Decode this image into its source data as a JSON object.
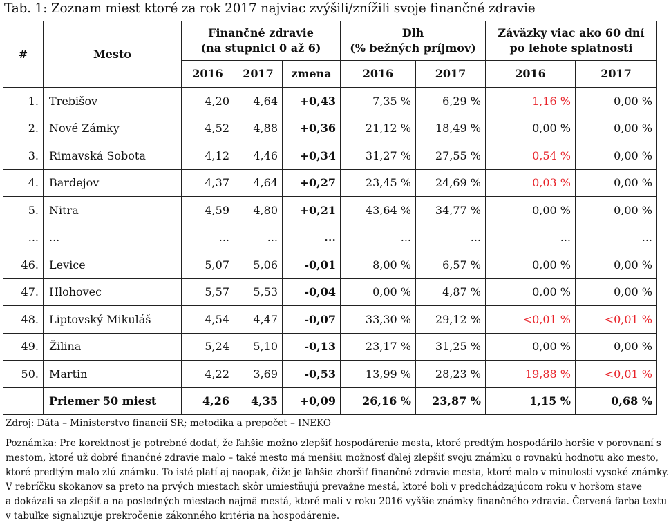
{
  "title": "Tab. 1: Zoznam miest ktoré za rok 2017 najviac zvýšili/znížili svoje finančné zdravie",
  "headers": {
    "num": "#",
    "city": "Mesto",
    "health_line1": "Finančné zdravie",
    "health_line2": "(na stupnici 0 až 6)",
    "debt_line1": "Dlh",
    "debt_line2": "(% bežných príjmov)",
    "liab_line1": "Záväzky viac ako 60 dní",
    "liab_line2": "po lehote splatnosti",
    "y2016": "2016",
    "y2017": "2017",
    "change": "zmena"
  },
  "rows": [
    {
      "rank": "1.",
      "city": "Trebišov",
      "h2016": "4,20",
      "h2017": "4,64",
      "change": "+0,43",
      "d2016": "7,35 %",
      "d2017": "6,29 %",
      "l2016": "1,16 %",
      "l2017": "0,00 %",
      "l2016_red": true,
      "l2017_red": false
    },
    {
      "rank": "2.",
      "city": "Nové Zámky",
      "h2016": "4,52",
      "h2017": "4,88",
      "change": "+0,36",
      "d2016": "21,12 %",
      "d2017": "18,49 %",
      "l2016": "0,00 %",
      "l2017": "0,00 %",
      "l2016_red": false,
      "l2017_red": false
    },
    {
      "rank": "3.",
      "city": "Rimavská Sobota",
      "h2016": "4,12",
      "h2017": "4,46",
      "change": "+0,34",
      "d2016": "31,27 %",
      "d2017": "27,55 %",
      "l2016": "0,54 %",
      "l2017": "0,00 %",
      "l2016_red": true,
      "l2017_red": false
    },
    {
      "rank": "4.",
      "city": "Bardejov",
      "h2016": "4,37",
      "h2017": "4,64",
      "change": "+0,27",
      "d2016": "23,45 %",
      "d2017": "24,69 %",
      "l2016": "0,03 %",
      "l2017": "0,00 %",
      "l2016_red": true,
      "l2017_red": false
    },
    {
      "rank": "5.",
      "city": "Nitra",
      "h2016": "4,59",
      "h2017": "4,80",
      "change": "+0,21",
      "d2016": "43,64 %",
      "d2017": "34,77 %",
      "l2016": "0,00 %",
      "l2017": "0,00 %",
      "l2016_red": false,
      "l2017_red": false
    },
    {
      "rank": "...",
      "city": "...",
      "h2016": "...",
      "h2017": "...",
      "change": "...",
      "d2016": "...",
      "d2017": "...",
      "l2016": "...",
      "l2017": "...",
      "l2016_red": false,
      "l2017_red": false
    },
    {
      "rank": "46.",
      "city": "Levice",
      "h2016": "5,07",
      "h2017": "5,06",
      "change": "-0,01",
      "d2016": "8,00 %",
      "d2017": "6,57 %",
      "l2016": "0,00 %",
      "l2017": "0,00 %",
      "l2016_red": false,
      "l2017_red": false
    },
    {
      "rank": "47.",
      "city": "Hlohovec",
      "h2016": "5,57",
      "h2017": "5,53",
      "change": "-0,04",
      "d2016": "0,00 %",
      "d2017": "4,87 %",
      "l2016": "0,00 %",
      "l2017": "0,00 %",
      "l2016_red": false,
      "l2017_red": false
    },
    {
      "rank": "48.",
      "city": "Liptovský Mikuláš",
      "h2016": "4,54",
      "h2017": "4,47",
      "change": "-0,07",
      "d2016": "33,30 %",
      "d2017": "29,12 %",
      "l2016": "<0,01 %",
      "l2017": "<0,01 %",
      "l2016_red": true,
      "l2017_red": true
    },
    {
      "rank": "49.",
      "city": "Žilina",
      "h2016": "5,24",
      "h2017": "5,10",
      "change": "-0,13",
      "d2016": "23,17 %",
      "d2017": "31,25 %",
      "l2016": "0,00 %",
      "l2017": "0,00 %",
      "l2016_red": false,
      "l2017_red": false
    },
    {
      "rank": "50.",
      "city": "Martin",
      "h2016": "4,22",
      "h2017": "3,69",
      "change": "-0,53",
      "d2016": "13,99 %",
      "d2017": "28,23 %",
      "l2016": "19,88 %",
      "l2017": "<0,01 %",
      "l2016_red": true,
      "l2017_red": true
    }
  ],
  "summary": {
    "label": "Priemer 50 miest",
    "h2016": "4,26",
    "h2017": "4,35",
    "change": "+0,09",
    "d2016": "26,16 %",
    "d2017": "23,87 %",
    "l2016": "1,15 %",
    "l2017": "0,68 %"
  },
  "source": "Zdroj: Dáta – Ministerstvo financií SR; metodika a prepočet – INEKO",
  "note_lines": [
    "Poznámka: Pre korektnosť je potrebné dodať, že ľahšie možno zlepšiť hospodárenie mesta, ktoré predtým hospodárilo horšie v porovnaní s",
    "mestom, ktoré už dobré finančné zdravie malo – také mesto má menšiu možnosť ďalej zlepšiť svoju známku o rovnakú hodnotu ako mesto,",
    "ktoré predtým malo zlú známku. To isté platí aj naopak, čiže je ľahšie zhoršiť finančné zdravie mesta, ktoré malo v minulosti vysoké známky.",
    "V rebríčku skokanov sa preto na prvých miestach skôr umiestňujú prevažne mestá, ktoré boli v predchádzajúcom roku v horšom stave",
    "a dokázali sa zlepšiť a na posledných miestach najmä mestá, ktoré mali v roku 2016 vyššie známky finančného zdravia. Červená farba textu",
    "v tabuľke signalizuje prekročenie zákonného kritéria na hospodárenie."
  ],
  "colors": {
    "alert": "#e8232a",
    "text": "#111111",
    "border": "#222222"
  }
}
